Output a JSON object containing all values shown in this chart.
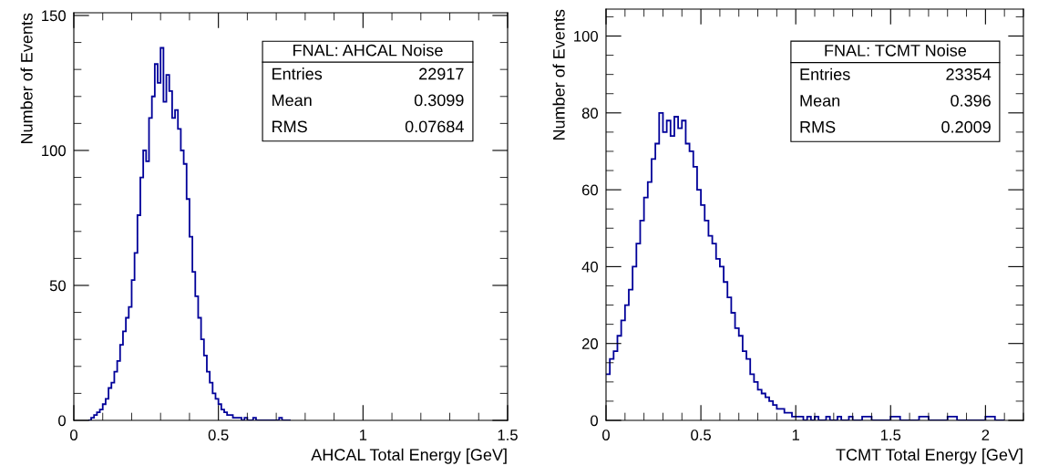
{
  "chart_data": [
    {
      "type": "histogram",
      "xlabel": "AHCAL Total Energy [GeV]",
      "ylabel": "Number of Events",
      "color": "#000099",
      "bins": [
        0.05,
        0.06,
        0.07,
        0.08,
        0.09,
        0.1,
        0.11,
        0.12,
        0.13,
        0.14,
        0.15,
        0.16,
        0.17,
        0.18,
        0.19,
        0.2,
        0.21,
        0.22,
        0.23,
        0.24,
        0.25,
        0.26,
        0.27,
        0.28,
        0.29,
        0.3,
        0.31,
        0.32,
        0.33,
        0.34,
        0.35,
        0.36,
        0.37,
        0.38,
        0.39,
        0.4,
        0.41,
        0.42,
        0.43,
        0.44,
        0.45,
        0.46,
        0.47,
        0.48,
        0.49,
        0.5,
        0.51,
        0.52,
        0.53,
        0.54,
        0.55,
        0.56,
        0.57,
        0.58,
        0.59,
        0.6,
        0.61,
        0.62,
        0.63,
        0.64,
        0.65,
        0.66,
        0.67,
        0.68,
        0.69,
        0.7,
        0.71,
        0.72,
        0.73,
        0.74,
        0.75
      ],
      "values": [
        0,
        1,
        2,
        3,
        4,
        6,
        8,
        12,
        14,
        18,
        22,
        28,
        33,
        38,
        42,
        52,
        62,
        76,
        90,
        100,
        96,
        112,
        120,
        132,
        125,
        138,
        118,
        128,
        122,
        112,
        115,
        108,
        100,
        95,
        82,
        68,
        55,
        46,
        38,
        30,
        24,
        18,
        14,
        10,
        8,
        6,
        4,
        3,
        2,
        2,
        1,
        1,
        1,
        0,
        1,
        0,
        0,
        1,
        0,
        0,
        0,
        0,
        0,
        0,
        0,
        0,
        1,
        0,
        0,
        0
      ],
      "xlim": [
        0,
        1.5
      ],
      "xticks": [
        0,
        0.5,
        1,
        1.5
      ],
      "ylim": [
        0,
        151
      ],
      "yticks": [
        0,
        50,
        100,
        150
      ],
      "grid": false,
      "annotations": [
        "FNAL: AHCAL Noise",
        "Entries",
        "22917",
        "Mean",
        "0.3099",
        "RMS",
        "0.07684"
      ]
    },
    {
      "type": "histogram",
      "xlabel": "TCMT Total Energy [GeV]",
      "ylabel": "Number of Events",
      "color": "#000099",
      "bins": [
        0.0,
        0.02,
        0.04,
        0.06,
        0.08,
        0.1,
        0.12,
        0.14,
        0.16,
        0.18,
        0.2,
        0.22,
        0.24,
        0.26,
        0.28,
        0.3,
        0.32,
        0.34,
        0.36,
        0.38,
        0.4,
        0.42,
        0.44,
        0.46,
        0.48,
        0.5,
        0.52,
        0.54,
        0.56,
        0.58,
        0.6,
        0.62,
        0.64,
        0.66,
        0.68,
        0.7,
        0.72,
        0.74,
        0.76,
        0.78,
        0.8,
        0.82,
        0.84,
        0.86,
        0.88,
        0.9,
        0.92,
        0.94,
        0.96,
        0.98,
        1.0,
        1.02,
        1.04,
        1.06,
        1.08,
        1.1,
        1.12,
        1.14,
        1.16,
        1.18,
        1.2,
        1.22,
        1.24,
        1.26,
        1.28,
        1.3,
        1.35,
        1.4,
        1.45,
        1.5,
        1.55,
        1.6,
        1.65,
        1.7,
        1.75,
        1.8,
        1.85,
        1.9,
        1.95,
        2.0,
        2.05,
        2.1
      ],
      "values": [
        12,
        16,
        18,
        22,
        26,
        30,
        34,
        40,
        46,
        52,
        58,
        62,
        68,
        72,
        80,
        75,
        78,
        74,
        79,
        76,
        78,
        72,
        70,
        66,
        60,
        56,
        52,
        48,
        46,
        42,
        40,
        36,
        32,
        28,
        24,
        22,
        18,
        16,
        12,
        10,
        8,
        7,
        6,
        5,
        4,
        3,
        3,
        2,
        2,
        1,
        1,
        1,
        0,
        1,
        0,
        1,
        0,
        0,
        1,
        0,
        0,
        1,
        0,
        0,
        1,
        0,
        1,
        0,
        0,
        1,
        0,
        0,
        1,
        0,
        0,
        1,
        0,
        0,
        0,
        1,
        0
      ],
      "xlim": [
        0,
        2.2
      ],
      "xticks": [
        0,
        0.5,
        1,
        1.5,
        2
      ],
      "ylim": [
        0,
        107
      ],
      "yticks": [
        0,
        20,
        40,
        60,
        80,
        100
      ],
      "grid": false,
      "annotations": [
        "FNAL: TCMT Noise",
        "Entries",
        "23354",
        "Mean",
        "0.396",
        "RMS",
        "0.2009"
      ]
    }
  ]
}
